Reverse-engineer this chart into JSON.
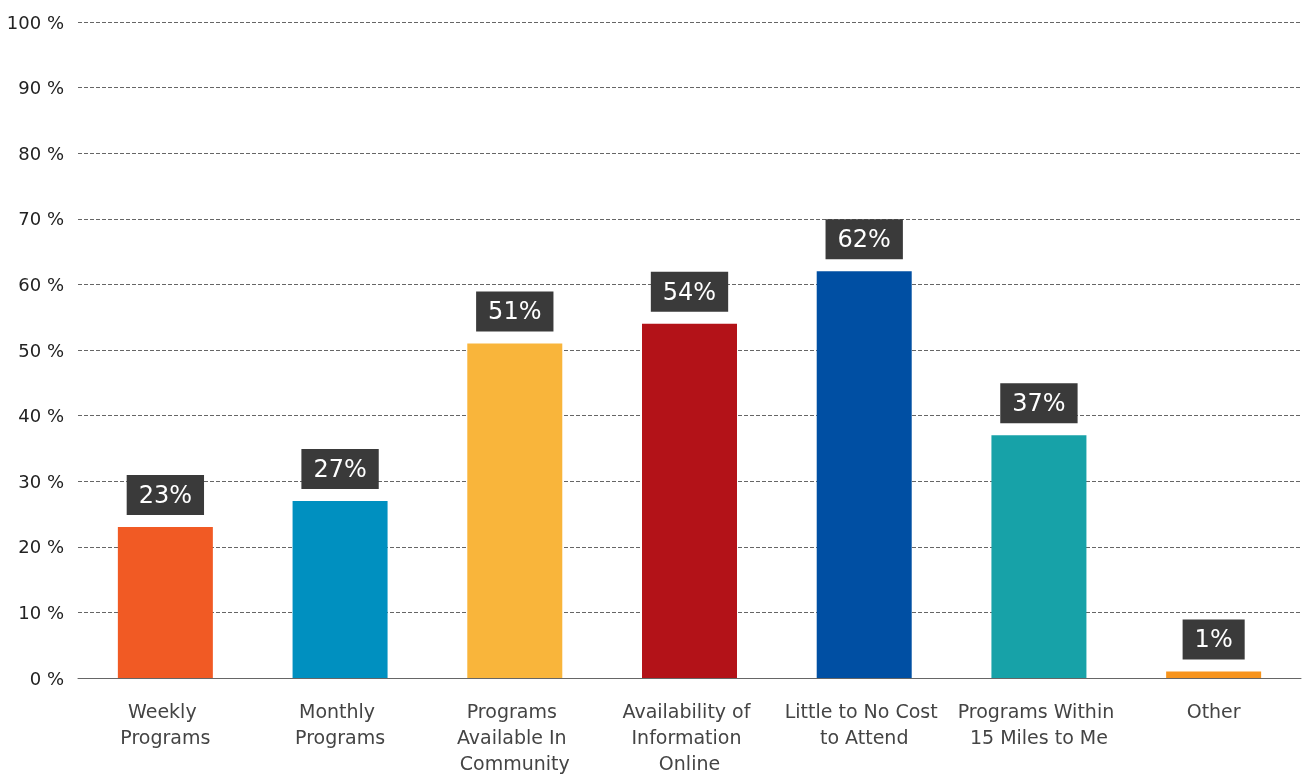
{
  "chart_data": {
    "type": "bar",
    "categories": [
      "Weekly Programs",
      "Monthly Programs",
      "Programs Available In Community",
      "Availability of Information Online",
      "Little to No Cost to Attend",
      "Programs Within 15 Miles to Me",
      "Other"
    ],
    "values": [
      23,
      27,
      51,
      54,
      62,
      37,
      1
    ],
    "colors": [
      "#f15a24",
      "#0090c0",
      "#f9b53b",
      "#b31218",
      "#004fa3",
      "#17a2a8",
      "#f7941d"
    ],
    "value_labels": [
      "23%",
      "27%",
      "51%",
      "54%",
      "62%",
      "37%",
      "1%"
    ],
    "ylim": [
      0,
      100
    ],
    "yticks": [
      {
        "value": 0,
        "label": "0 %"
      },
      {
        "value": 10,
        "label": "10 %"
      },
      {
        "value": 20,
        "label": "20 %"
      },
      {
        "value": 30,
        "label": "30 %"
      },
      {
        "value": 40,
        "label": "40 %"
      },
      {
        "value": 50,
        "label": "50 %"
      },
      {
        "value": 60,
        "label": "60 %"
      },
      {
        "value": 70,
        "label": "70 %"
      },
      {
        "value": 80,
        "label": "80 %"
      },
      {
        "value": 90,
        "label": "90 %"
      },
      {
        "value": 100,
        "label": "100 %"
      }
    ],
    "grid": "y"
  }
}
